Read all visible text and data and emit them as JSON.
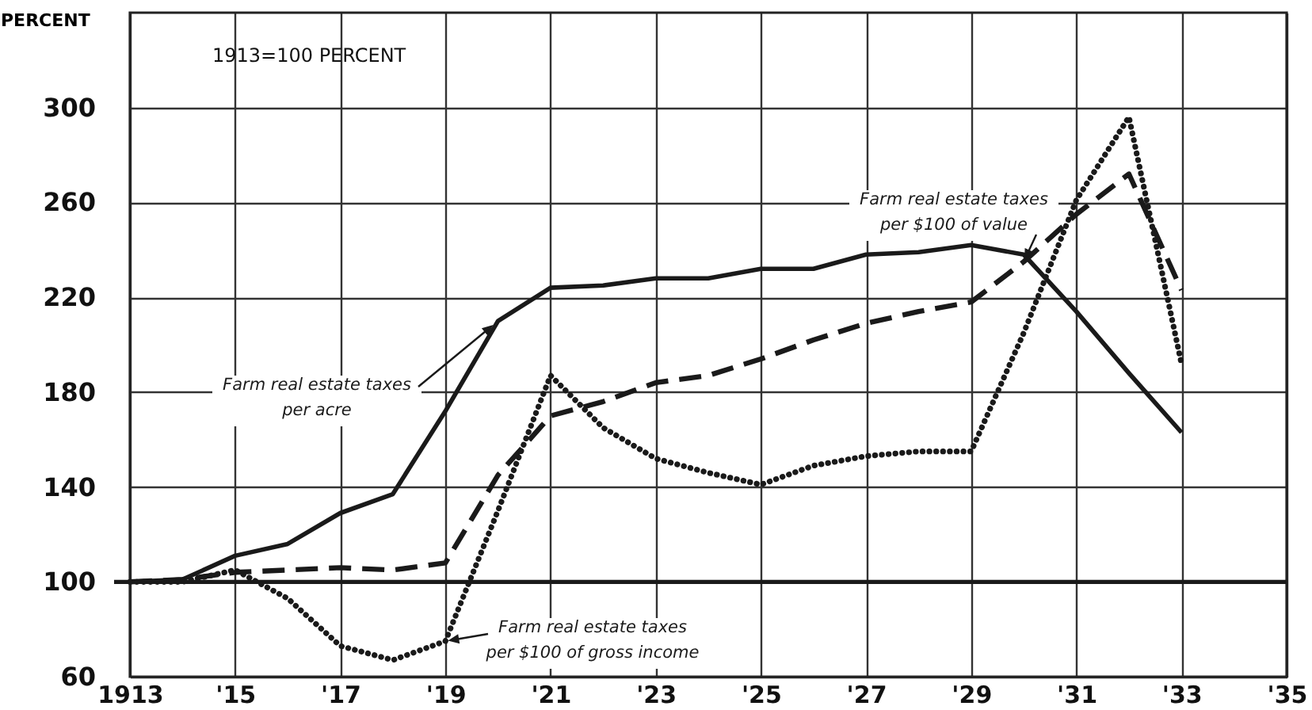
{
  "chart_data": {
    "type": "line",
    "ylabel": "PERCENT",
    "annotations": [
      "1913=100 PERCENT"
    ],
    "x": [
      1913,
      1914,
      1915,
      1916,
      1917,
      1918,
      1919,
      1920,
      1921,
      1922,
      1923,
      1924,
      1925,
      1926,
      1927,
      1928,
      1929,
      1930,
      1931,
      1932,
      1933
    ],
    "series": [
      {
        "name": "Farm real estate taxes\nper acre",
        "color": "#1a1a1a",
        "line_style": "solid",
        "values": [
          100,
          101,
          111,
          116,
          129,
          137,
          172,
          210,
          224,
          225,
          228,
          228,
          232,
          232,
          238,
          239,
          242,
          238,
          214,
          188,
          163
        ]
      },
      {
        "name": "Farm real estate taxes\nper $100 of value",
        "color": "#1a1a1a",
        "line_style": "dashed",
        "values": [
          100,
          101,
          104,
          105,
          106,
          105,
          108,
          145,
          170,
          176,
          184,
          187,
          194,
          202,
          209,
          214,
          218,
          235,
          255,
          272,
          223
        ]
      },
      {
        "name": "Farm real estate taxes\nper $100 of gross income",
        "color": "#1a1a1a",
        "line_style": "dotted",
        "values": [
          100,
          100,
          105,
          93,
          73,
          67,
          75,
          130,
          187,
          165,
          152,
          146,
          141,
          149,
          153,
          155,
          155,
          205,
          261,
          296,
          192
        ]
      }
    ],
    "xlim": [
      1913,
      1935
    ],
    "xticks": [
      {
        "value": 1913,
        "label": "1913"
      },
      {
        "value": 1915,
        "label": "'15"
      },
      {
        "value": 1917,
        "label": "'17"
      },
      {
        "value": 1919,
        "label": "'19"
      },
      {
        "value": 1921,
        "label": "'21"
      },
      {
        "value": 1923,
        "label": "'23"
      },
      {
        "value": 1925,
        "label": "'25"
      },
      {
        "value": 1927,
        "label": "'27"
      },
      {
        "value": 1929,
        "label": "'29"
      },
      {
        "value": 1931,
        "label": "'31"
      },
      {
        "value": 1933,
        "label": "'33"
      },
      {
        "value": 1935,
        "label": "'35"
      }
    ],
    "ylim": [
      60,
      340
    ],
    "yticks": [
      60,
      100,
      140,
      180,
      220,
      260,
      300
    ],
    "grid": true,
    "ref_lines": [
      {
        "axis": "y",
        "value": 100,
        "color": "#1a1a1a"
      }
    ]
  }
}
